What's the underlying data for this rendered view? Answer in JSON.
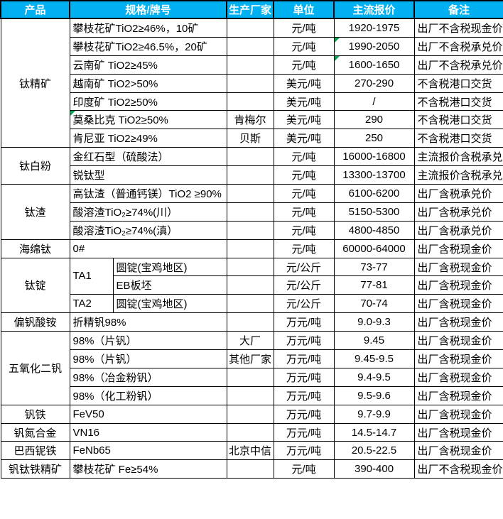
{
  "columns": [
    "产品",
    "规格/牌号",
    "生产厂家",
    "单位",
    "主流报价",
    "备注"
  ],
  "colors": {
    "header_bg": "#00b0f0",
    "header_text": "#ffffff",
    "border": "#000000",
    "comment_flag_green": "#00a651"
  },
  "groups": [
    {
      "product": "钛精矿",
      "rows": [
        {
          "spec": "攀枝花矿TiO2≥46%，10矿",
          "maker": "",
          "unit": "元/吨",
          "price": "1920-1975",
          "note": "出厂不含税现金价"
        },
        {
          "spec": "攀枝花矿TiO2≥46.5%，20矿",
          "maker": "",
          "unit": "元/吨",
          "price": "1990-2050",
          "note": "出厂不含税承兑价",
          "price_flag": true
        },
        {
          "spec": "云南矿 TiO2≥45%",
          "maker": "",
          "unit": "元/吨",
          "price": "1600-1650",
          "note": "出厂不含税承兑价",
          "price_flag": true
        },
        {
          "spec": "越南矿 TiO2>50%",
          "maker": "",
          "unit": "美元/吨",
          "price": "270-290",
          "note": "不含税港口交货"
        },
        {
          "spec": "印度矿 TiO2≥50%",
          "maker": "",
          "unit": "美元/吨",
          "price": "/",
          "note": "不含税港口交货"
        },
        {
          "spec": "莫桑比克 TiO2≥50%",
          "maker": "肯梅尔",
          "unit": "美元/吨",
          "price": "290",
          "note": "不含税港口交货",
          "spec_flag": true
        },
        {
          "spec": "肯尼亚 TiO2≥49%",
          "maker": "贝斯",
          "unit": "美元/吨",
          "price": "250",
          "note": "不含税港口交货"
        }
      ]
    },
    {
      "product": "钛白粉",
      "rows": [
        {
          "spec": "金红石型（硫酸法）",
          "maker": "",
          "unit": "元/吨",
          "price": "16000-16800",
          "note": "主流报价含税承兑"
        },
        {
          "spec": "锐钛型",
          "maker": "",
          "unit": "元/吨",
          "price": "13300-13700",
          "note": "主流报价含税承兑"
        }
      ]
    },
    {
      "product": "钛渣",
      "rows": [
        {
          "spec": "高钛渣（普通钙镁）TiO2 ≥90%",
          "maker": "",
          "unit": "元/吨",
          "price": "6100-6200",
          "note": "出厂含税承兑价"
        },
        {
          "spec": "酸溶渣TiO₂≥74%(川）",
          "maker": "",
          "unit": "元/吨",
          "price": "5150-5300",
          "note": "出厂含税承兑价"
        },
        {
          "spec": "酸溶渣TiO₂≥74%(滇）",
          "maker": "",
          "unit": "元/吨",
          "price": "4800-4850",
          "note": "出厂含税承兑价"
        }
      ]
    },
    {
      "product": "海绵钛",
      "rows": [
        {
          "spec": "0#",
          "maker": "",
          "unit": "元/吨",
          "price": "60000-64000",
          "note": "出厂含税现金价"
        }
      ]
    },
    {
      "product": "钛锭",
      "split_spec": true,
      "rows": [
        {
          "grade": "TA1",
          "grade_rowspan": 2,
          "spec": "圆锭(宝鸡地区)",
          "maker": "",
          "unit": "元/公斤",
          "price": "73-77",
          "note": "出厂含税现金价"
        },
        {
          "spec": "EB板坯",
          "maker": "",
          "unit": "元/公斤",
          "price": "77-81",
          "note": "出厂含税现金价"
        },
        {
          "grade": "TA2",
          "spec": "圆锭(宝鸡地区)",
          "maker": "",
          "unit": "元/公斤",
          "price": "70-74",
          "note": "出厂含税现金价"
        }
      ]
    },
    {
      "product": "偏钒酸铵",
      "rows": [
        {
          "spec": "折精钒98%",
          "maker": "",
          "unit": "万元/吨",
          "price": "9.0-9.3",
          "note": "出厂含税现金价"
        }
      ]
    },
    {
      "product": "五氧化二钒",
      "rows": [
        {
          "spec": "98%（片钒）",
          "maker": "大厂",
          "unit": "万元/吨",
          "price": "9.45",
          "note": "出厂含税现金价"
        },
        {
          "spec": "98%（片钒）",
          "maker": "其他厂家",
          "unit": "万元/吨",
          "price": "9.45-9.5",
          "note": "出厂含税现金价"
        },
        {
          "spec": "98%（冶金粉钒）",
          "maker": "",
          "unit": "万元/吨",
          "price": "9.4-9.5",
          "note": "出厂含税现金价"
        },
        {
          "spec": "98%（化工粉钒）",
          "maker": "",
          "unit": "万元/吨",
          "price": "9.5-9.6",
          "note": "出厂含税现金价"
        }
      ]
    },
    {
      "product": "钒铁",
      "rows": [
        {
          "spec": "FeV50",
          "maker": "",
          "unit": "万元/吨",
          "price": "9.7-9.9",
          "note": "出厂含税现金价"
        }
      ]
    },
    {
      "product": "钒氮合金",
      "rows": [
        {
          "spec": "VN16",
          "maker": "",
          "unit": "万元/吨",
          "price": "14.5-14.7",
          "note": "出厂含税现金价"
        }
      ]
    },
    {
      "product": "巴西铌铁",
      "rows": [
        {
          "spec": "FeNb65",
          "maker": "北京中信",
          "unit": "万元/吨",
          "price": "20.5-22.5",
          "note": "出厂含税现金价"
        }
      ]
    },
    {
      "product": "钒钛铁精矿",
      "rows": [
        {
          "spec": "攀枝花矿 Fe≥54%",
          "maker": "",
          "unit": "元/吨",
          "price": "390-400",
          "note": "出厂不含税现金价"
        }
      ]
    }
  ]
}
